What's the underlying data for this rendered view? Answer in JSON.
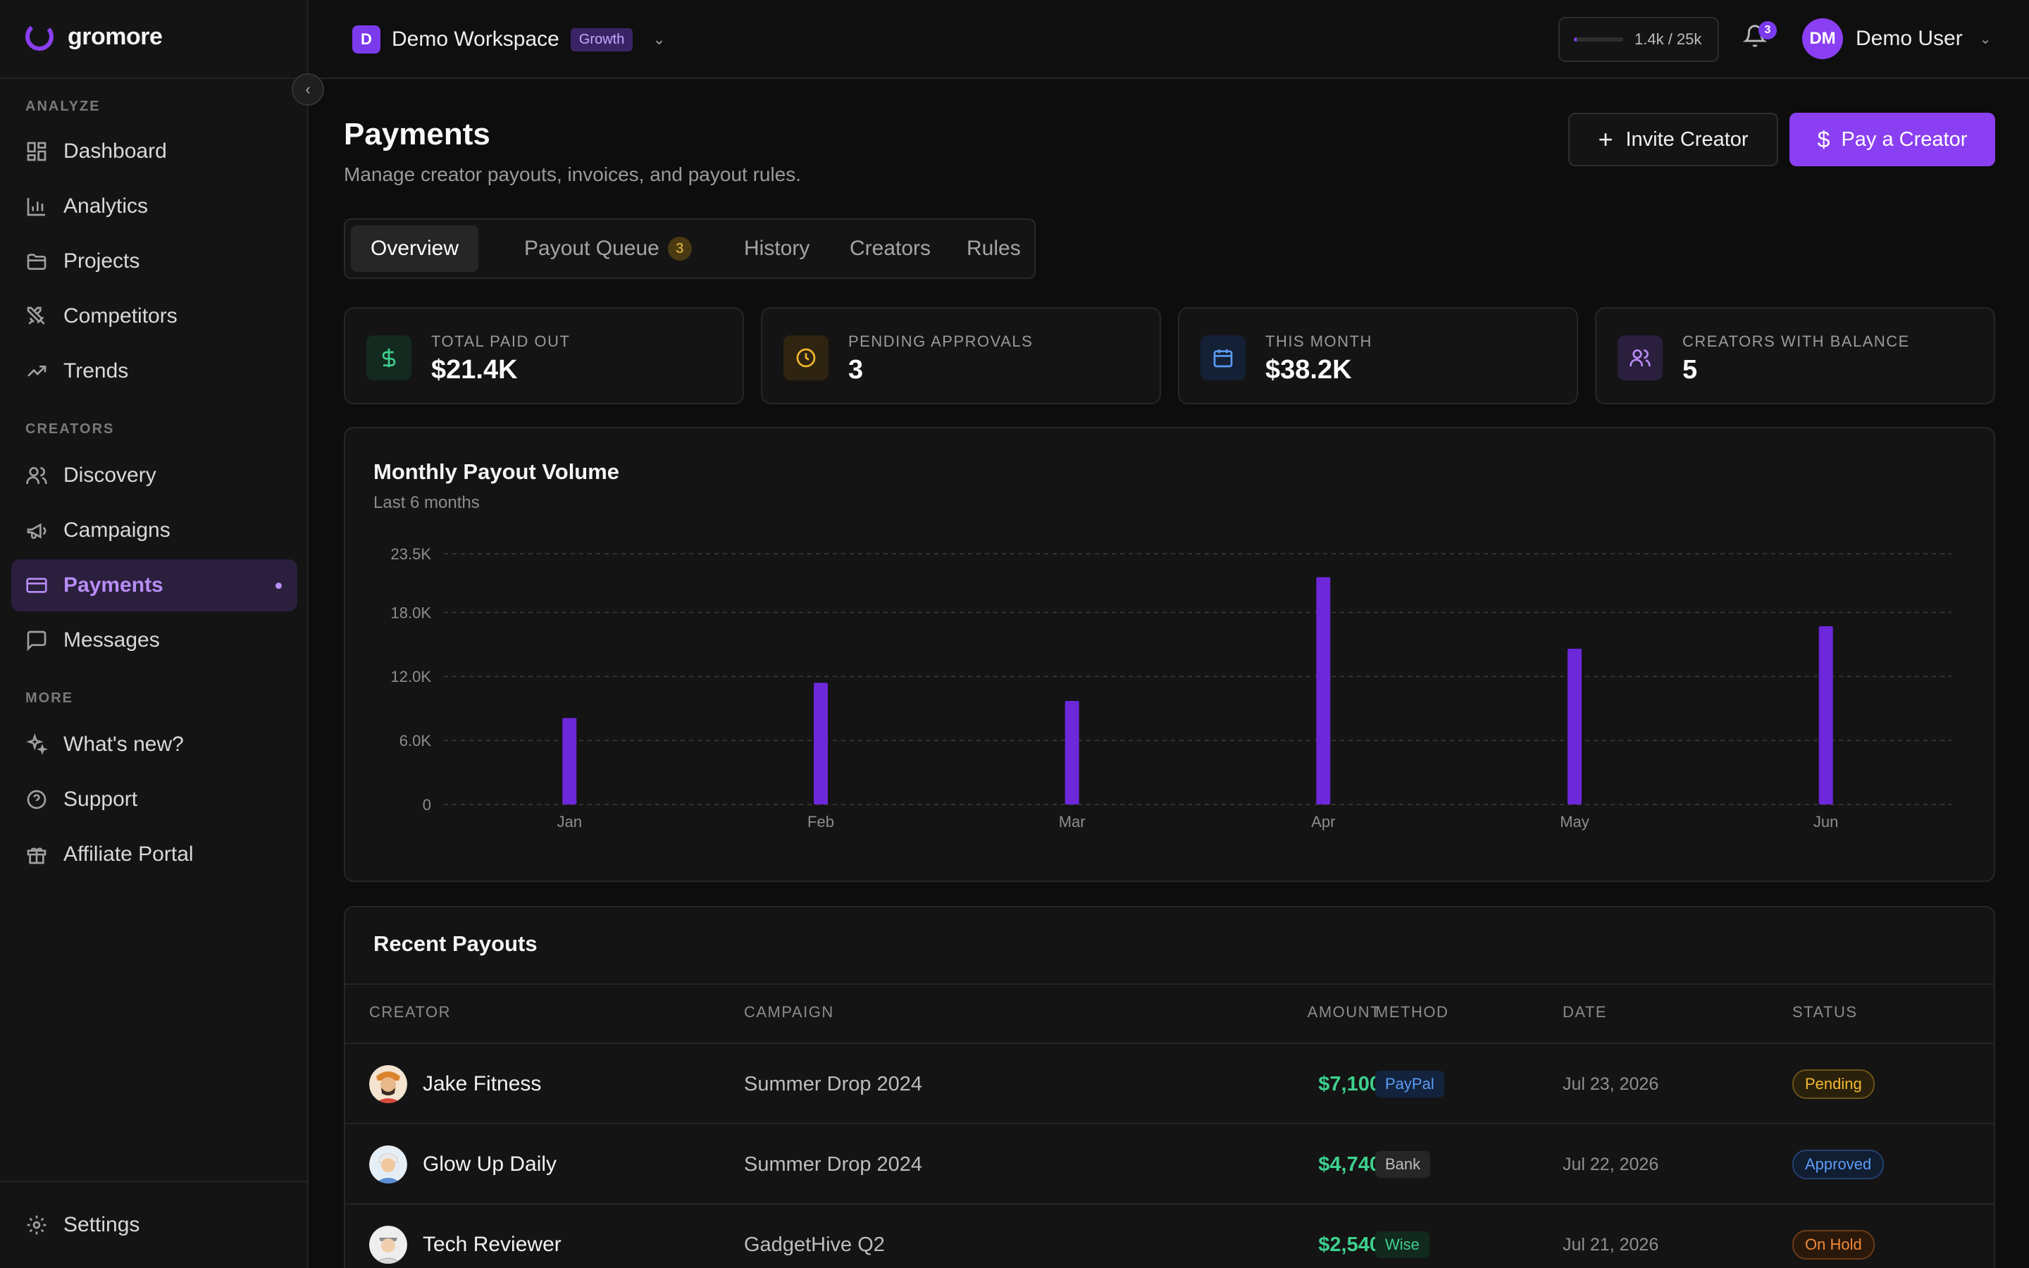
{
  "brand": {
    "name": "gromore"
  },
  "sidebar": {
    "sections": [
      {
        "label": "ANALYZE"
      },
      {
        "label": "CREATORS"
      },
      {
        "label": "MORE"
      }
    ],
    "items": [
      {
        "label": "Dashboard",
        "icon": "grid-icon"
      },
      {
        "label": "Analytics",
        "icon": "bar-chart-icon"
      },
      {
        "label": "Projects",
        "icon": "folder-icon"
      },
      {
        "label": "Competitors",
        "icon": "swords-icon"
      },
      {
        "label": "Trends",
        "icon": "trending-up-icon"
      },
      {
        "label": "Discovery",
        "icon": "users-icon"
      },
      {
        "label": "Campaigns",
        "icon": "megaphone-icon"
      },
      {
        "label": "Payments",
        "icon": "credit-card-icon",
        "active": true
      },
      {
        "label": "Messages",
        "icon": "message-square-icon"
      },
      {
        "label": "What's new?",
        "icon": "sparkles-icon"
      },
      {
        "label": "Support",
        "icon": "help-circle-icon"
      },
      {
        "label": "Affiliate Portal",
        "icon": "gift-icon"
      },
      {
        "label": "Settings",
        "icon": "gear-icon"
      }
    ]
  },
  "topbar": {
    "workspace_initial": "D",
    "workspace_name": "Demo Workspace",
    "plan_badge": "Growth",
    "usage_text": "1.4k / 25k",
    "usage_fraction": 0.056,
    "notification_count": "3",
    "user_initials": "DM",
    "user_name": "Demo User"
  },
  "header": {
    "title": "Payments",
    "subtitle": "Manage creator payouts, invoices, and payout rules.",
    "invite_label": "Invite Creator",
    "pay_label": "Pay a Creator"
  },
  "tabs": [
    {
      "label": "Overview",
      "active": true
    },
    {
      "label": "Payout Queue",
      "badge": "3"
    },
    {
      "label": "History"
    },
    {
      "label": "Creators"
    },
    {
      "label": "Rules"
    }
  ],
  "stats": [
    {
      "label": "TOTAL PAID OUT",
      "value": "$21.4K",
      "icon": "dollar-icon",
      "color": "#3ecf8e"
    },
    {
      "label": "PENDING APPROVALS",
      "value": "3",
      "icon": "clock-icon",
      "color": "#f5b82e"
    },
    {
      "label": "THIS MONTH",
      "value": "$38.2K",
      "icon": "calendar-icon",
      "color": "#5b9cf5"
    },
    {
      "label": "CREATORS WITH BALANCE",
      "value": "5",
      "icon": "users-icon",
      "color": "#b88cf5"
    }
  ],
  "chart_data": {
    "type": "bar",
    "title": "Monthly Payout Volume",
    "subtitle": "Last 6 months",
    "categories": [
      "Jan",
      "Feb",
      "Mar",
      "Apr",
      "May",
      "Jun"
    ],
    "values": [
      8100,
      11400,
      9700,
      21300,
      14600,
      16700
    ],
    "ylim": [
      0,
      23500
    ],
    "yticks": [
      0,
      6000,
      12000,
      18000,
      23500
    ],
    "ytick_labels": [
      "0",
      "6.0K",
      "12.0K",
      "18.0K",
      "23.5K"
    ],
    "bar_color": "#6d28d9",
    "grid": true
  },
  "table": {
    "title": "Recent Payouts",
    "headers": [
      "CREATOR",
      "CAMPAIGN",
      "AMOUNT",
      "METHOD",
      "DATE",
      "STATUS"
    ],
    "rows": [
      {
        "creator": "Jake Fitness",
        "campaign": "Summer Drop 2024",
        "amount": "$7,100",
        "method": "PayPal",
        "date": "Jul 23, 2026",
        "status": "Pending"
      },
      {
        "creator": "Glow Up Daily",
        "campaign": "Summer Drop 2024",
        "amount": "$4,740",
        "method": "Bank",
        "date": "Jul 22, 2026",
        "status": "Approved"
      },
      {
        "creator": "Tech Reviewer",
        "campaign": "GadgetHive Q2",
        "amount": "$2,540",
        "method": "Wise",
        "date": "Jul 21, 2026",
        "status": "On Hold"
      }
    ],
    "method_colors": {
      "PayPal": "#5b9cf5",
      "Bank": "#bdbdbd",
      "Wise": "#3ecf8e"
    },
    "status_colors": {
      "Pending": "#f5b82e",
      "Approved": "#5b9cf5",
      "On Hold": "#f08a3a"
    }
  }
}
